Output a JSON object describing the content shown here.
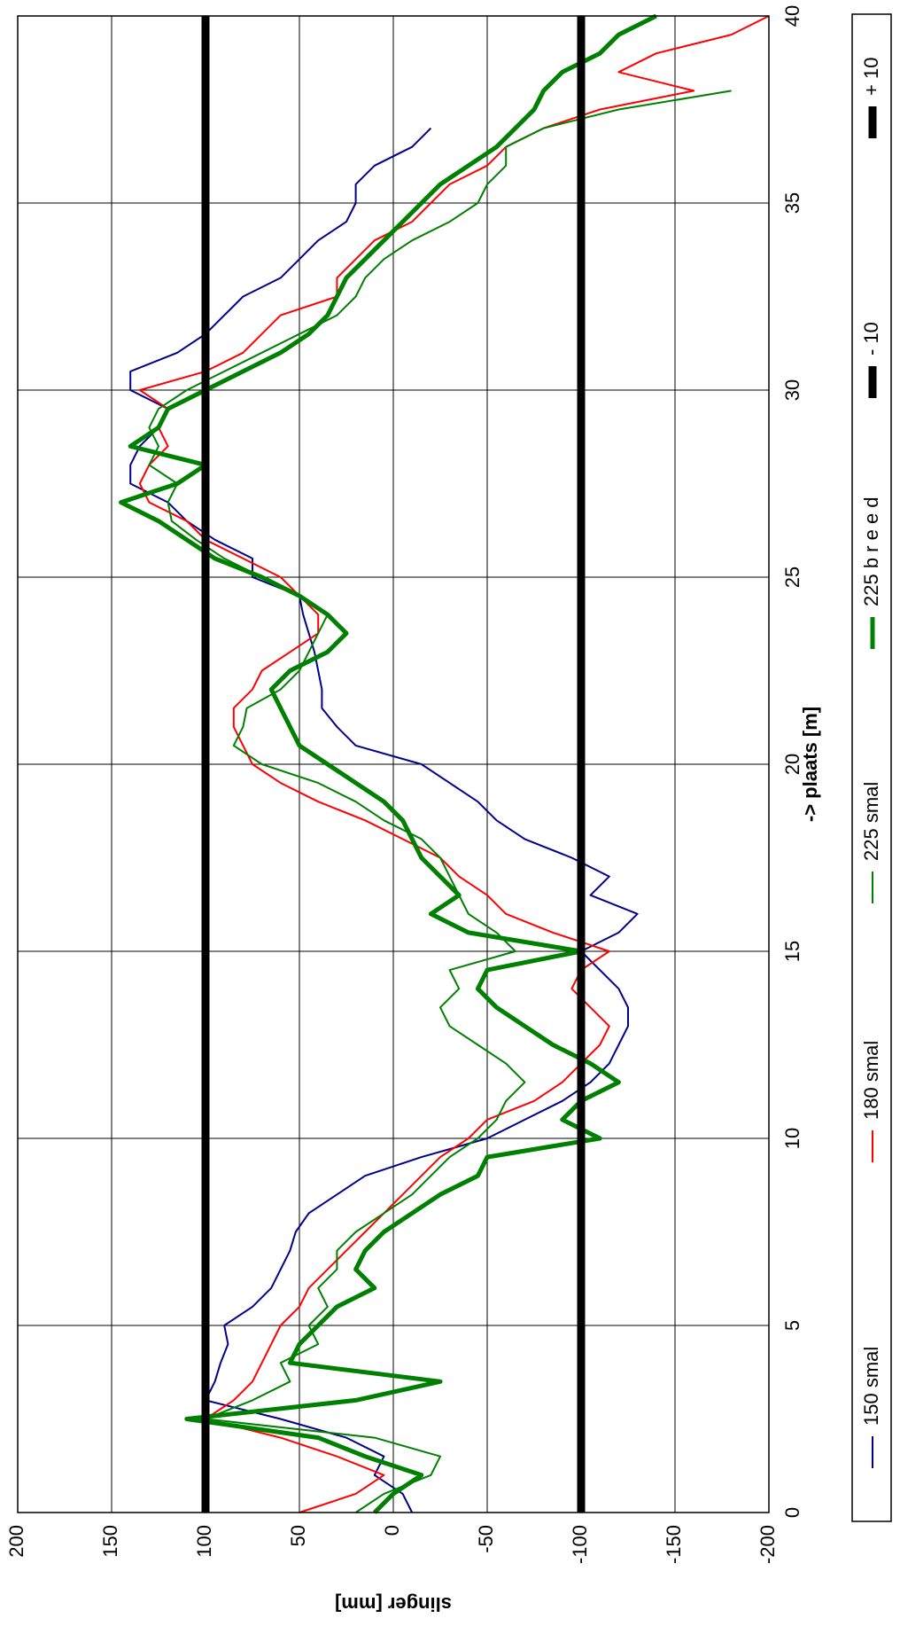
{
  "chart_data": {
    "type": "line",
    "orientation": "rotated-90-clockwise",
    "xlabel": "-> plaats [m]",
    "ylabel": "slinger [mm]",
    "xlim": [
      0,
      40
    ],
    "ylim": [
      -200,
      200
    ],
    "x_ticks": [
      "0",
      "5",
      "10",
      "15",
      "20",
      "25",
      "30",
      "35",
      "40"
    ],
    "y_ticks": [
      "200",
      "150",
      "100",
      "50",
      "0",
      "-50",
      "-100",
      "-150",
      "-200"
    ],
    "grid": true,
    "legend_position": "bottom",
    "series": [
      {
        "name": "150 smal",
        "color": "#00008b",
        "width": 2,
        "x": [
          0.0,
          0.5,
          1.0,
          1.5,
          2.0,
          2.5,
          3.0,
          3.5,
          4.0,
          4.5,
          5.0,
          5.5,
          6.0,
          6.5,
          7.0,
          7.5,
          8.0,
          8.5,
          9.0,
          9.5,
          10.0,
          10.5,
          11.0,
          11.5,
          12.0,
          12.5,
          13.0,
          13.5,
          14.0,
          14.5,
          15.0,
          15.5,
          16.0,
          16.5,
          17.0,
          17.5,
          18.0,
          18.5,
          19.0,
          19.5,
          20.0,
          20.5,
          21.0,
          21.5,
          22.0,
          22.5,
          23.0,
          23.5,
          24.0,
          24.5,
          25.0,
          25.5,
          26.0,
          26.5,
          27.0,
          27.5,
          28.0,
          28.5,
          29.0,
          29.5,
          30.0,
          30.5,
          31.0,
          31.5,
          32.0,
          32.5,
          33.0,
          33.5,
          34.0,
          34.5,
          35.0,
          35.5,
          36.0,
          36.5,
          37.0
        ],
        "values": [
          -10,
          -5,
          10,
          5,
          25,
          60,
          100,
          95,
          92,
          88,
          90,
          75,
          65,
          60,
          55,
          52,
          45,
          30,
          15,
          -15,
          -50,
          -70,
          -90,
          -105,
          -115,
          -120,
          -125,
          -125,
          -120,
          -110,
          -100,
          -120,
          -130,
          -105,
          -115,
          -95,
          -70,
          -55,
          -45,
          -30,
          -15,
          20,
          30,
          38,
          38,
          40,
          42,
          45,
          48,
          50,
          75,
          75,
          95,
          110,
          120,
          140,
          140,
          135,
          125,
          120,
          140,
          140,
          115,
          100,
          90,
          80,
          60,
          50,
          40,
          25,
          20,
          20,
          10,
          -10,
          -20
        ]
      },
      {
        "name": "180 smal",
        "color": "#ff0000",
        "width": 2,
        "x": [
          0.0,
          0.5,
          1.0,
          1.5,
          2.0,
          2.5,
          3.0,
          3.5,
          4.0,
          4.5,
          5.0,
          5.5,
          6.0,
          6.5,
          7.0,
          7.5,
          8.0,
          8.5,
          9.0,
          9.5,
          10.0,
          10.5,
          11.0,
          11.5,
          12.0,
          12.5,
          13.0,
          13.5,
          14.0,
          14.5,
          15.0,
          15.5,
          16.0,
          16.5,
          17.0,
          17.5,
          18.0,
          18.5,
          19.0,
          19.5,
          20.0,
          20.5,
          21.0,
          21.5,
          22.0,
          22.5,
          23.0,
          23.5,
          24.0,
          24.5,
          25.0,
          25.5,
          26.0,
          26.5,
          27.0,
          27.5,
          28.0,
          28.5,
          29.0,
          29.5,
          30.0,
          30.5,
          31.0,
          31.5,
          32.0,
          32.5,
          33.0,
          33.5,
          34.0,
          34.5,
          35.0,
          35.5,
          36.0,
          36.5,
          37.0,
          37.5,
          38.0,
          38.5,
          39.0,
          39.5,
          40.0
        ],
        "values": [
          50,
          20,
          5,
          30,
          60,
          100,
          85,
          75,
          70,
          65,
          60,
          50,
          45,
          35,
          25,
          15,
          5,
          -5,
          -15,
          -25,
          -40,
          -50,
          -75,
          -90,
          -100,
          -110,
          -115,
          -105,
          -95,
          -100,
          -115,
          -85,
          -60,
          -50,
          -35,
          -25,
          -5,
          15,
          40,
          60,
          75,
          80,
          85,
          85,
          75,
          70,
          55,
          40,
          40,
          50,
          60,
          80,
          100,
          110,
          130,
          135,
          130,
          120,
          125,
          120,
          135,
          100,
          80,
          70,
          60,
          30,
          30,
          20,
          10,
          -10,
          -20,
          -30,
          -50,
          -60,
          -80,
          -110,
          -160,
          -120,
          -140,
          -180,
          -200
        ]
      },
      {
        "name": "225 smal",
        "color": "#008000",
        "width": 2,
        "x": [
          0.0,
          0.5,
          1.0,
          1.5,
          2.0,
          2.5,
          3.0,
          3.5,
          4.0,
          4.5,
          5.0,
          5.5,
          6.0,
          6.5,
          7.0,
          7.5,
          8.0,
          8.5,
          9.0,
          9.5,
          10.0,
          10.5,
          11.0,
          11.5,
          12.0,
          12.5,
          13.0,
          13.5,
          14.0,
          14.5,
          15.0,
          15.5,
          16.0,
          16.5,
          17.0,
          17.5,
          18.0,
          18.5,
          19.0,
          19.5,
          20.0,
          20.5,
          21.0,
          21.5,
          22.0,
          22.5,
          23.0,
          23.5,
          24.0,
          24.5,
          25.0,
          25.5,
          26.0,
          26.5,
          27.0,
          27.5,
          28.0,
          28.5,
          29.0,
          29.5,
          30.0,
          30.5,
          31.0,
          31.5,
          32.0,
          32.5,
          33.0,
          33.5,
          34.0,
          34.5,
          35.0,
          35.5,
          36.0,
          36.5,
          37.0,
          37.5,
          38.0
        ],
        "values": [
          20,
          5,
          -20,
          -25,
          10,
          100,
          75,
          55,
          60,
          40,
          45,
          35,
          40,
          30,
          30,
          20,
          5,
          -10,
          -20,
          -30,
          -45,
          -55,
          -60,
          -70,
          -60,
          -45,
          -30,
          -25,
          -35,
          -30,
          -65,
          -55,
          -40,
          -35,
          -30,
          -25,
          -15,
          5,
          20,
          40,
          70,
          85,
          80,
          78,
          60,
          50,
          45,
          40,
          35,
          50,
          70,
          90,
          105,
          118,
          120,
          115,
          130,
          125,
          130,
          125,
          110,
          90,
          70,
          50,
          30,
          20,
          15,
          5,
          -10,
          -30,
          -45,
          -50,
          -60,
          -60,
          -80,
          -120,
          -180
        ]
      },
      {
        "name": "225 b r e e d",
        "color": "#008000",
        "width": 5,
        "x": [
          0.0,
          0.5,
          1.0,
          1.5,
          2.0,
          2.5,
          3.0,
          3.5,
          4.0,
          4.5,
          5.0,
          5.5,
          6.0,
          6.5,
          7.0,
          7.5,
          8.0,
          8.5,
          9.0,
          9.5,
          10.0,
          10.5,
          11.0,
          11.5,
          12.0,
          12.5,
          13.0,
          13.5,
          14.0,
          14.5,
          15.0,
          15.5,
          16.0,
          16.5,
          17.0,
          17.5,
          18.0,
          18.5,
          19.0,
          19.5,
          20.0,
          20.5,
          21.0,
          21.5,
          22.0,
          22.5,
          23.0,
          23.5,
          24.0,
          24.5,
          25.0,
          25.5,
          26.0,
          26.5,
          27.0,
          27.5,
          28.0,
          28.5,
          29.0,
          29.5,
          30.0,
          30.5,
          31.0,
          31.5,
          32.0,
          32.5,
          33.0,
          33.5,
          34.0,
          34.5,
          35.0,
          35.5,
          36.0,
          36.5,
          37.0,
          37.5,
          38.0,
          38.5,
          39.0,
          39.5,
          40.0
        ],
        "values": [
          10,
          0,
          -15,
          15,
          40,
          110,
          20,
          -25,
          55,
          50,
          40,
          30,
          10,
          20,
          15,
          5,
          -10,
          -25,
          -45,
          -50,
          -110,
          -90,
          -100,
          -120,
          -105,
          -85,
          -70,
          -55,
          -45,
          -50,
          -100,
          -40,
          -20,
          -35,
          -25,
          -15,
          -10,
          -5,
          5,
          20,
          35,
          50,
          55,
          60,
          65,
          55,
          35,
          25,
          35,
          50,
          70,
          95,
          110,
          125,
          145,
          115,
          100,
          140,
          125,
          120,
          100,
          80,
          60,
          45,
          35,
          30,
          25,
          15,
          5,
          -5,
          -15,
          -25,
          -40,
          -55,
          -65,
          -75,
          -80,
          -90,
          -110,
          -120,
          -140
        ]
      },
      {
        "name": "- 10",
        "color": "#000000",
        "width": 9,
        "x": [
          0,
          40
        ],
        "values": [
          -100,
          -100
        ]
      },
      {
        "name": "+ 10",
        "color": "#000000",
        "width": 9,
        "x": [
          0,
          40
        ],
        "values": [
          100,
          100
        ]
      }
    ]
  }
}
